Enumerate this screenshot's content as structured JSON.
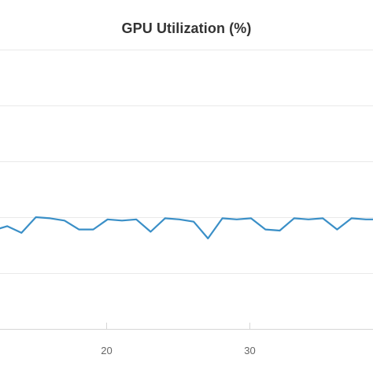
{
  "chart_data": {
    "type": "line",
    "title": "GPU Utilization (%)",
    "xlabel": "",
    "ylabel": "",
    "xlim": [
      12.6,
      38.6
    ],
    "ylim": [
      0,
      125
    ],
    "grid": true,
    "legend": "none",
    "x_ticks": [
      20,
      30
    ],
    "y_gridlines": [
      25,
      50,
      75,
      100,
      125
    ],
    "colors": {
      "series": "#3a8fc7",
      "grid": "#e9e9e9",
      "axis": "#d6d6d6",
      "title": "#333333",
      "tick_label": "#666666"
    },
    "series": [
      {
        "x": [
          12.6,
          13.1,
          14.1,
          15.1,
          16.1,
          17.1,
          18.1,
          19.1,
          20.1,
          21.1,
          22.1,
          23.1,
          24.1,
          25.1,
          26.1,
          27.1,
          28.1,
          29.1,
          30.1,
          31.1,
          32.1,
          33.1,
          34.1,
          35.1,
          36.1,
          37.1,
          38.1,
          38.6
        ],
        "y": [
          45,
          46,
          43,
          50,
          49.5,
          48.5,
          44.5,
          44.5,
          49,
          48.5,
          49,
          43.5,
          49.5,
          49,
          48,
          40.5,
          49.5,
          49,
          49.5,
          44.5,
          44,
          49.5,
          49,
          49.5,
          44.5,
          49.5,
          49,
          49
        ]
      }
    ]
  }
}
